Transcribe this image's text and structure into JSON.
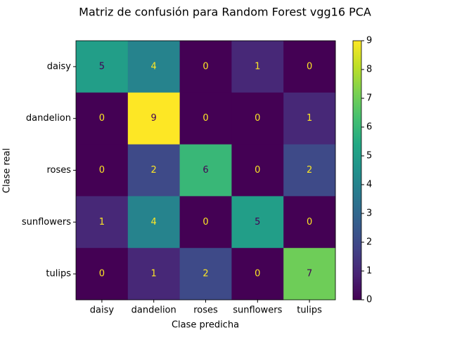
{
  "chart_data": {
    "type": "heatmap",
    "title": "Matriz de confusión para Random Forest vgg16 PCA",
    "x_label": "Clase predicha",
    "y_label": "Clase real",
    "x_categories": [
      "daisy",
      "dandelion",
      "roses",
      "sunflowers",
      "tulips"
    ],
    "y_categories": [
      "daisy",
      "dandelion",
      "roses",
      "sunflowers",
      "tulips"
    ],
    "values": [
      [
        5,
        4,
        0,
        1,
        0
      ],
      [
        0,
        9,
        0,
        0,
        1
      ],
      [
        0,
        2,
        6,
        0,
        2
      ],
      [
        1,
        4,
        0,
        5,
        0
      ],
      [
        0,
        1,
        2,
        0,
        7
      ]
    ],
    "colormap": "viridis",
    "zlim": [
      0,
      9
    ],
    "zticks": [
      0,
      1,
      2,
      3,
      4,
      5,
      6,
      7,
      8,
      9
    ]
  }
}
